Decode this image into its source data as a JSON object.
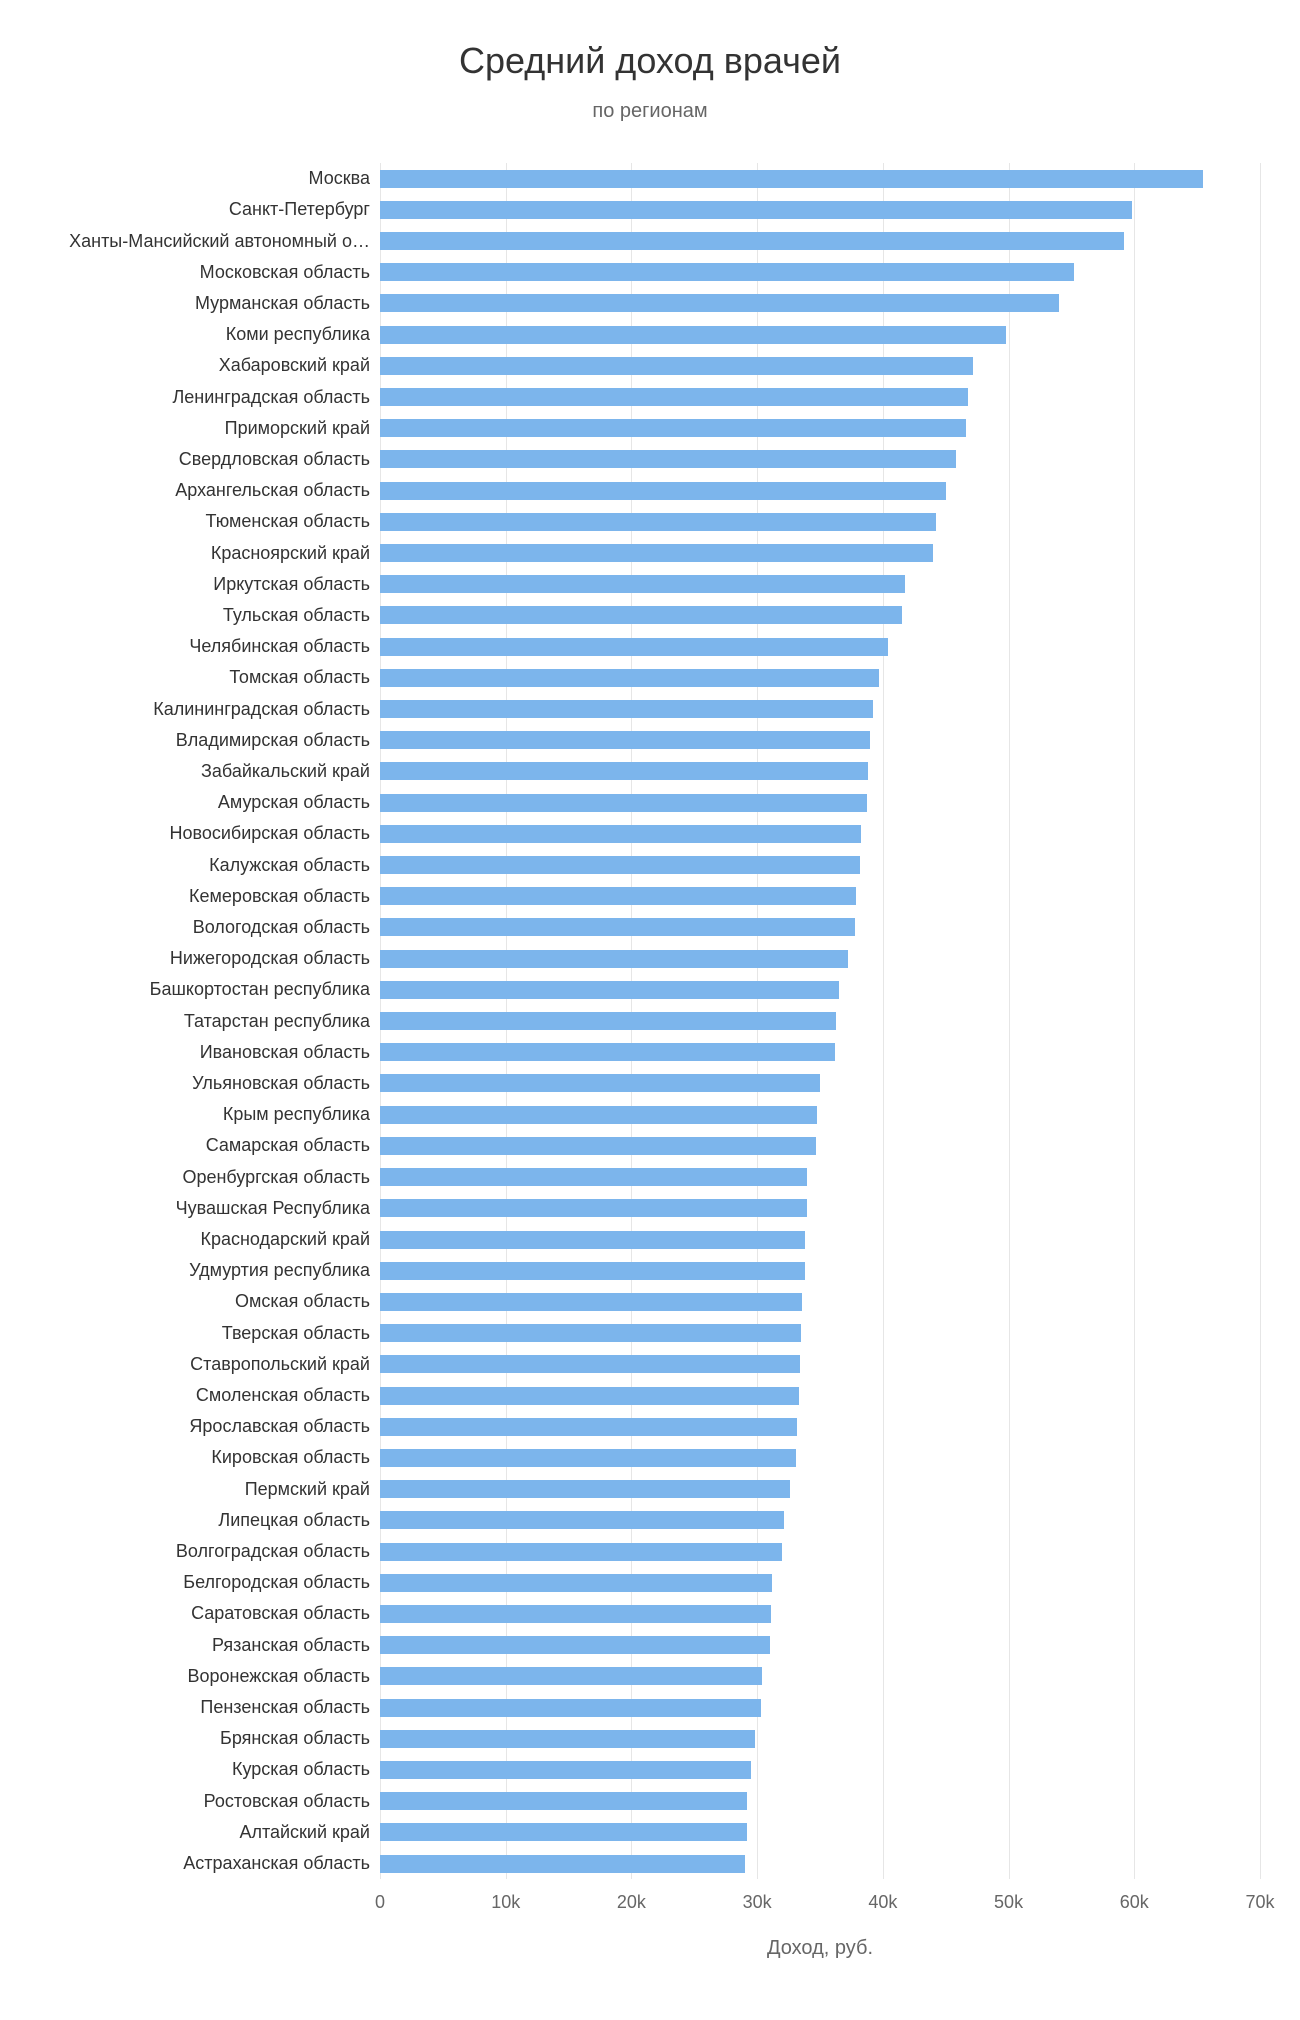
{
  "chart": {
    "type": "bar-horizontal",
    "title": "Средний доход врачей",
    "subtitle": "по регионам",
    "x_axis_title": "Доход, руб.",
    "title_fontsize": 36,
    "subtitle_fontsize": 20,
    "label_fontsize": 18,
    "tick_fontsize": 18,
    "axis_title_fontsize": 20,
    "title_color": "#333333",
    "subtitle_color": "#666666",
    "tick_color": "#666666",
    "bar_color": "#7cb5ec",
    "grid_color": "#e6e6e6",
    "background_color": "#ffffff",
    "xlim": [
      0,
      70000
    ],
    "xtick_step": 10000,
    "xticks": [
      {
        "value": 0,
        "label": "0"
      },
      {
        "value": 10000,
        "label": "10k"
      },
      {
        "value": 20000,
        "label": "20k"
      },
      {
        "value": 30000,
        "label": "30k"
      },
      {
        "value": 40000,
        "label": "40k"
      },
      {
        "value": 50000,
        "label": "50k"
      },
      {
        "value": 60000,
        "label": "60k"
      },
      {
        "value": 70000,
        "label": "70k"
      }
    ],
    "label_truncation": "ellipsis",
    "categories": [
      {
        "label": "Москва",
        "value": 65500
      },
      {
        "label": "Санкт-Петербург",
        "value": 59800
      },
      {
        "label": "Ханты-Мансийский автономный о…",
        "value": 59200
      },
      {
        "label": "Московская область",
        "value": 55200
      },
      {
        "label": "Мурманская область",
        "value": 54000
      },
      {
        "label": "Коми республика",
        "value": 49800
      },
      {
        "label": "Хабаровский край",
        "value": 47200
      },
      {
        "label": "Ленинградская область",
        "value": 46800
      },
      {
        "label": "Приморский край",
        "value": 46600
      },
      {
        "label": "Свердловская область",
        "value": 45800
      },
      {
        "label": "Архангельская область",
        "value": 45000
      },
      {
        "label": "Тюменская область",
        "value": 44200
      },
      {
        "label": "Красноярский край",
        "value": 44000
      },
      {
        "label": "Иркутская область",
        "value": 41800
      },
      {
        "label": "Тульская область",
        "value": 41500
      },
      {
        "label": "Челябинская область",
        "value": 40400
      },
      {
        "label": "Томская область",
        "value": 39700
      },
      {
        "label": "Калининградская область",
        "value": 39200
      },
      {
        "label": "Владимирская область",
        "value": 39000
      },
      {
        "label": "Забайкальский край",
        "value": 38800
      },
      {
        "label": "Амурская область",
        "value": 38700
      },
      {
        "label": "Новосибирская область",
        "value": 38300
      },
      {
        "label": "Калужская область",
        "value": 38200
      },
      {
        "label": "Кемеровская область",
        "value": 37900
      },
      {
        "label": "Вологодская область",
        "value": 37800
      },
      {
        "label": "Нижегородская область",
        "value": 37200
      },
      {
        "label": "Башкортостан республика",
        "value": 36500
      },
      {
        "label": "Татарстан республика",
        "value": 36300
      },
      {
        "label": "Ивановская область",
        "value": 36200
      },
      {
        "label": "Ульяновская область",
        "value": 35000
      },
      {
        "label": "Крым республика",
        "value": 34800
      },
      {
        "label": "Самарская область",
        "value": 34700
      },
      {
        "label": "Оренбургская область",
        "value": 34000
      },
      {
        "label": "Чувашская Республика",
        "value": 34000
      },
      {
        "label": "Краснодарский край",
        "value": 33800
      },
      {
        "label": "Удмуртия республика",
        "value": 33800
      },
      {
        "label": "Омская область",
        "value": 33600
      },
      {
        "label": "Тверская область",
        "value": 33500
      },
      {
        "label": "Ставропольский край",
        "value": 33400
      },
      {
        "label": "Смоленская область",
        "value": 33300
      },
      {
        "label": "Ярославская область",
        "value": 33200
      },
      {
        "label": "Кировская область",
        "value": 33100
      },
      {
        "label": "Пермский край",
        "value": 32600
      },
      {
        "label": "Липецкая область",
        "value": 32100
      },
      {
        "label": "Волгоградская область",
        "value": 32000
      },
      {
        "label": "Белгородская область",
        "value": 31200
      },
      {
        "label": "Саратовская область",
        "value": 31100
      },
      {
        "label": "Рязанская область",
        "value": 31000
      },
      {
        "label": "Воронежская область",
        "value": 30400
      },
      {
        "label": "Пензенская область",
        "value": 30300
      },
      {
        "label": "Брянская область",
        "value": 29800
      },
      {
        "label": "Курская область",
        "value": 29500
      },
      {
        "label": "Ростовская область",
        "value": 29200
      },
      {
        "label": "Алтайский край",
        "value": 29200
      },
      {
        "label": "Астраханская область",
        "value": 29000
      }
    ]
  }
}
